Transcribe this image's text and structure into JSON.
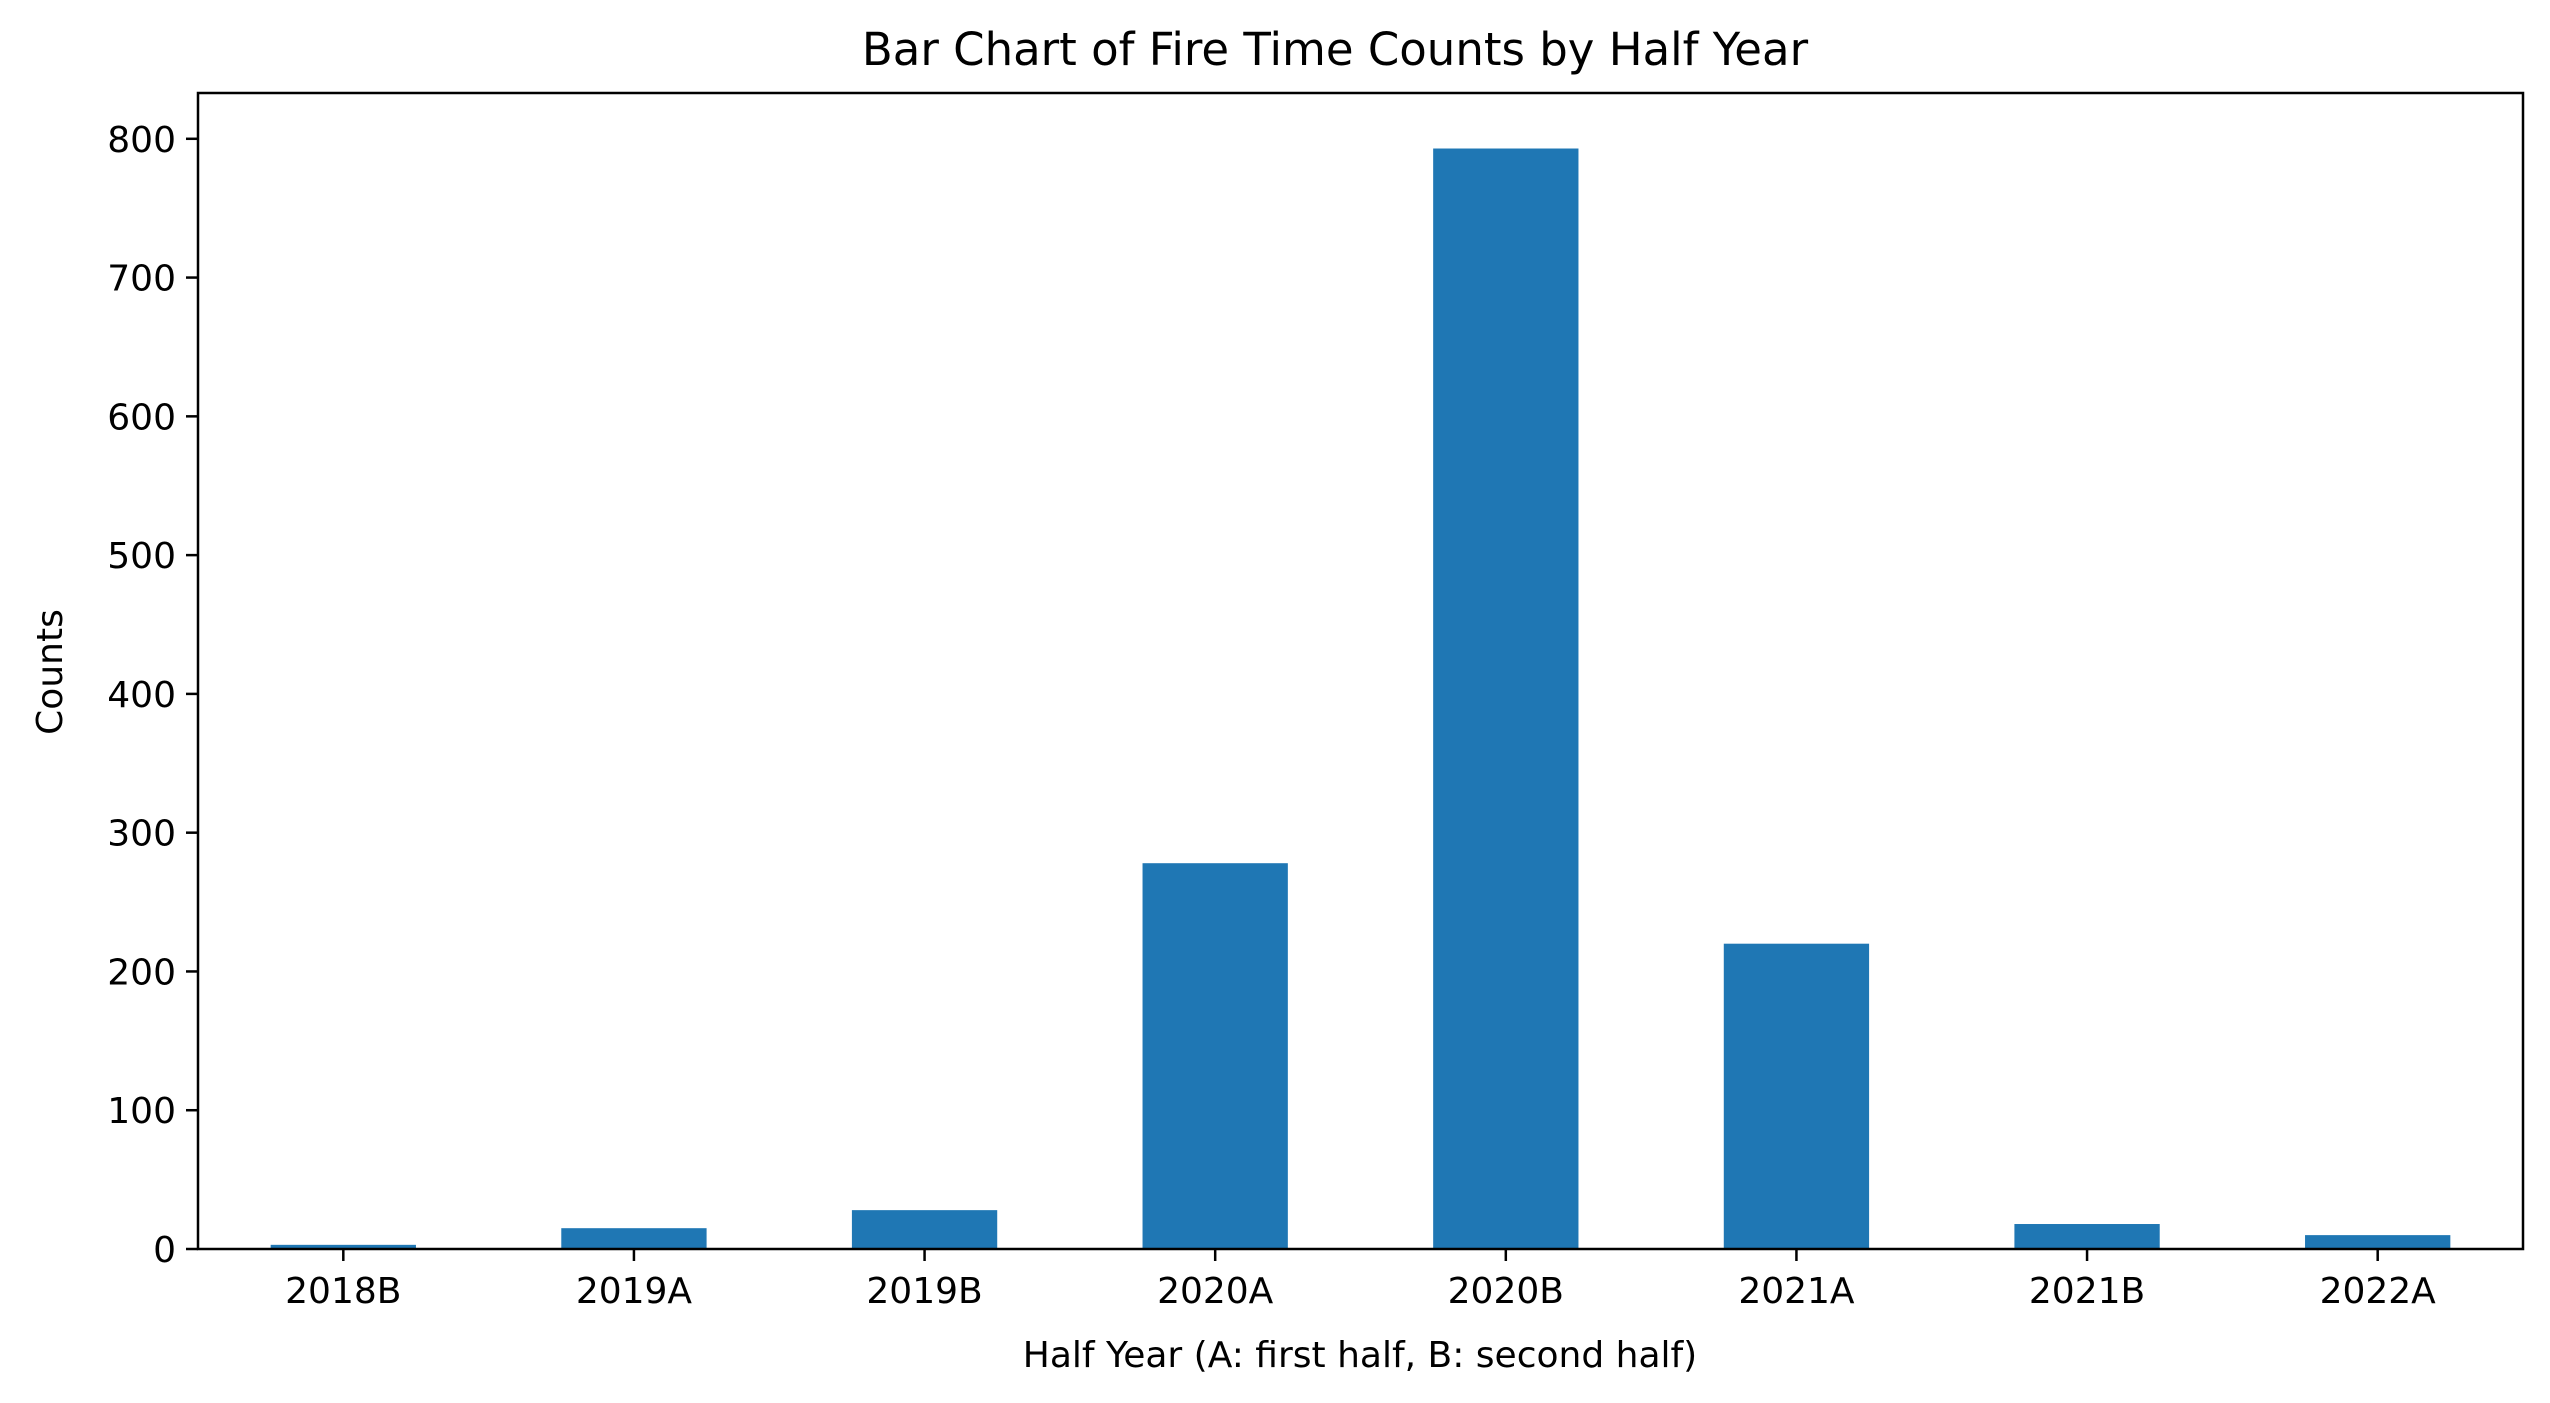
{
  "chart_data": {
    "type": "bar",
    "title": "Bar Chart of Fire Time Counts by Half Year",
    "xlabel": "Half Year (A: first half, B: second half)",
    "ylabel": "Counts",
    "categories": [
      "2018B",
      "2019A",
      "2019B",
      "2020A",
      "2020B",
      "2021A",
      "2021B",
      "2022A"
    ],
    "values": [
      3,
      15,
      28,
      278,
      793,
      220,
      18,
      10
    ],
    "ylim": [
      0,
      833
    ],
    "yticks": [
      0,
      100,
      200,
      300,
      400,
      500,
      600,
      700,
      800
    ],
    "ytick_labels": [
      "0",
      "100",
      "200",
      "300",
      "400",
      "500",
      "600",
      "700",
      "800"
    ],
    "bar_color": "#1f77b4",
    "grid": false,
    "legend": "none"
  }
}
